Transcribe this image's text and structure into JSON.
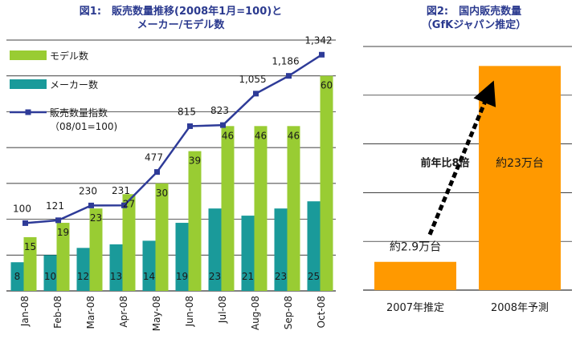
{
  "figure1": {
    "title_line1": "図1:　販売数量推移(2008年1月=100)と",
    "title_line2": "メーカー/モデル数"
  },
  "figure2": {
    "title_line1": "図2:　国内販売数量",
    "title_line2": "（GfKジャパン推定）"
  },
  "chart_data": [
    {
      "type": "bar",
      "title": "図1:　販売数量推移(2008年1月=100)とメーカー/モデル数",
      "categories": [
        "Jan-08",
        "Feb-08",
        "Mar-08",
        "Apr-08",
        "May-08",
        "Jun-08",
        "Jul-08",
        "Aug-08",
        "Sep-08",
        "Oct-08"
      ],
      "series": [
        {
          "name": "メーカー数",
          "kind": "bar",
          "color": "#1a9a9a",
          "values": [
            8,
            10,
            12,
            13,
            14,
            19,
            23,
            21,
            23,
            25
          ]
        },
        {
          "name": "モデル数",
          "kind": "bar",
          "color": "#99cc33",
          "values": [
            15,
            19,
            23,
            27,
            30,
            39,
            46,
            46,
            46,
            60
          ]
        },
        {
          "name": "販売数量指数",
          "name_line2": "（08/01=100)",
          "kind": "line",
          "color": "#2e3b98",
          "values": [
            100,
            121,
            230,
            231,
            477,
            815,
            823,
            1055,
            1186,
            1342
          ],
          "labels": [
            "100",
            "121",
            "230",
            "231",
            "477",
            "815",
            "823",
            "1,055",
            "1,186",
            "1,342"
          ]
        }
      ],
      "ylim_bars": [
        0,
        70
      ],
      "ylim_line": [
        -400,
        1450
      ],
      "grid": true
    },
    {
      "type": "bar",
      "title": "図2:　国内販売数量（GfKジャパン推定）",
      "categories": [
        "2007年推定",
        "2008年予測"
      ],
      "values": [
        2.9,
        23
      ],
      "value_labels": [
        "約2.9万台",
        "約23万台"
      ],
      "unit": "万台",
      "color": "#ff9900",
      "ylim": [
        0,
        25
      ],
      "grid": true,
      "annotation": "前年比8倍"
    }
  ]
}
